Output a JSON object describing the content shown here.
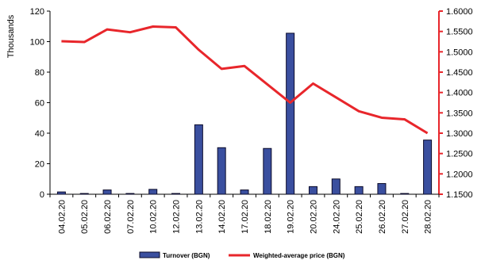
{
  "chart_data": {
    "type": "bar+line",
    "title": "",
    "xlabel": "",
    "ylabel": "Thousands",
    "categories": [
      "04.02.20",
      "05.02.20",
      "06.02.20",
      "07.02.20",
      "10.02.20",
      "12.02.20",
      "13.02.20",
      "14.02.20",
      "17.02.20",
      "18.02.20",
      "19.02.20",
      "20.02.20",
      "24.02.20",
      "25.02.20",
      "26.02.20",
      "27.02.20",
      "28.02.20"
    ],
    "y_left": {
      "ylim": [
        0,
        120
      ],
      "ticks": [
        "0",
        "20",
        "40",
        "60",
        "80",
        "100",
        "120"
      ]
    },
    "y_right": {
      "ylim": [
        1.15,
        1.6
      ],
      "ticks": [
        "1.1500",
        "1.2000",
        "1.2500",
        "1.3000",
        "1.3500",
        "1.4000",
        "1.4500",
        "1.5000",
        "1.5500",
        "1.6000"
      ]
    },
    "series": [
      {
        "name": "Turnover (BGN)",
        "type": "bar",
        "axis": "left",
        "color": "#3a4f9f",
        "values": [
          1.5,
          0.5,
          2.8,
          0.5,
          3.2,
          0.5,
          45.5,
          30.5,
          2.8,
          30,
          105.5,
          5,
          10,
          5,
          7,
          0.5,
          35.5
        ]
      },
      {
        "name": "Weighted-average price (BGN)",
        "type": "line",
        "axis": "right",
        "color": "#e8262b",
        "values": [
          1.526,
          1.524,
          1.555,
          1.548,
          1.562,
          1.56,
          1.505,
          1.458,
          1.465,
          1.42,
          1.375,
          1.422,
          1.388,
          1.354,
          1.338,
          1.334,
          1.3
        ]
      }
    ],
    "legend_position": "bottom",
    "grid": false
  }
}
